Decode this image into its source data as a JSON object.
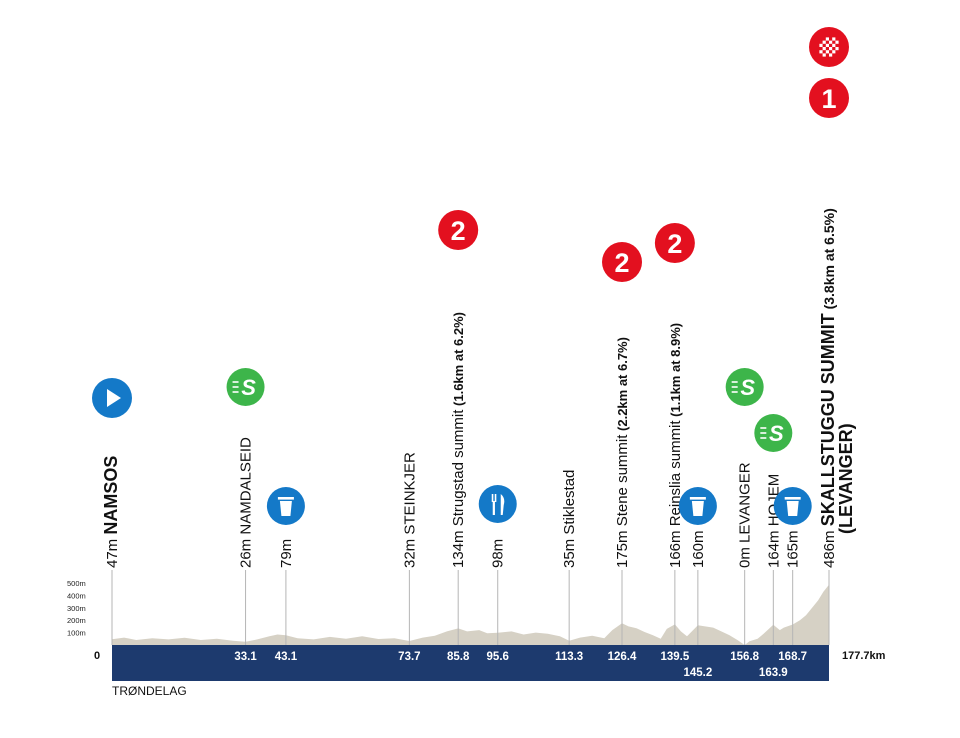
{
  "chart_data": {
    "type": "area",
    "region": "TRØNDELAG",
    "total_label": "177.7km",
    "start_label": "0",
    "x_range": [
      0,
      177.7
    ],
    "y_range": [
      0,
      500
    ],
    "y_tick_labels": [
      "500m",
      "400m",
      "300m",
      "200m",
      "100m"
    ],
    "y_tick_values": [
      500,
      400,
      300,
      200,
      100
    ],
    "km_marks": [
      {
        "km": 33.1,
        "label": "33.1",
        "row": 1
      },
      {
        "km": 43.1,
        "label": "43.1",
        "row": 1
      },
      {
        "km": 73.7,
        "label": "73.7",
        "row": 1
      },
      {
        "km": 85.8,
        "label": "85.8",
        "row": 1
      },
      {
        "km": 95.6,
        "label": "95.6",
        "row": 1
      },
      {
        "km": 113.3,
        "label": "113.3",
        "row": 1
      },
      {
        "km": 126.4,
        "label": "126.4",
        "row": 1
      },
      {
        "km": 139.5,
        "label": "139.5",
        "row": 1
      },
      {
        "km": 145.2,
        "label": "145.2",
        "row": 2
      },
      {
        "km": 156.8,
        "label": "156.8",
        "row": 1
      },
      {
        "km": 163.9,
        "label": "163.9",
        "row": 2
      },
      {
        "km": 168.7,
        "label": "168.7",
        "row": 1
      }
    ],
    "waypoints": [
      {
        "km": 0,
        "elev": "47m",
        "name": "NAMSOS",
        "bold": true
      },
      {
        "km": 33.1,
        "elev": "26m",
        "name": "NAMDALSEID",
        "bold": false
      },
      {
        "km": 43.1,
        "elev": "79m",
        "name": "",
        "bold": false
      },
      {
        "km": 73.7,
        "elev": "32m",
        "name": "STEINKJER",
        "bold": false
      },
      {
        "km": 85.8,
        "elev": "134m",
        "name": "Strugstad summit",
        "detail": "(1.6km at 6.2%)",
        "bold": false
      },
      {
        "km": 95.6,
        "elev": "98m",
        "name": "",
        "bold": false
      },
      {
        "km": 113.3,
        "elev": "35m",
        "name": "Stiklestad",
        "bold": false
      },
      {
        "km": 126.4,
        "elev": "175m",
        "name": "Stene summit",
        "detail": "(2.2km at 6.7%)",
        "bold": false
      },
      {
        "km": 139.5,
        "elev": "166m",
        "name": "Reinslia summit",
        "detail": "(1.1km at 8.9%)",
        "bold": false
      },
      {
        "km": 145.2,
        "elev": "160m",
        "name": "",
        "bold": false
      },
      {
        "km": 156.8,
        "elev": "0m",
        "name": "LEVANGER",
        "bold": false
      },
      {
        "km": 163.9,
        "elev": "164m",
        "name": "HOJEM",
        "bold": false
      },
      {
        "km": 168.7,
        "elev": "165m",
        "name": "",
        "bold": false
      },
      {
        "km": 177.7,
        "elev": "486m",
        "name": "SKALLSTUGGU SUMMIT",
        "detail": "(3.8km at 6.5%)",
        "name2": "(LEVANGER)",
        "bold": true
      }
    ],
    "markers": [
      {
        "km": 0,
        "type": "start",
        "label": ""
      },
      {
        "km": 33.1,
        "type": "sprint",
        "label": "S"
      },
      {
        "km": 43.1,
        "type": "feed-zone",
        "label": ""
      },
      {
        "km": 85.8,
        "type": "kom",
        "label": "2"
      },
      {
        "km": 95.6,
        "type": "food",
        "label": ""
      },
      {
        "km": 126.4,
        "type": "kom",
        "label": "2"
      },
      {
        "km": 139.5,
        "type": "kom",
        "label": "2"
      },
      {
        "km": 145.2,
        "type": "feed-zone",
        "label": ""
      },
      {
        "km": 156.8,
        "type": "sprint",
        "label": "S"
      },
      {
        "km": 163.9,
        "type": "sprint",
        "label": "S"
      },
      {
        "km": 168.7,
        "type": "feed-zone",
        "label": ""
      },
      {
        "km": 177.7,
        "type": "kom",
        "label": "1"
      },
      {
        "km": 177.7,
        "type": "finish",
        "label": ""
      }
    ],
    "profile": [
      [
        0,
        47
      ],
      [
        3,
        60
      ],
      [
        6,
        40
      ],
      [
        10,
        55
      ],
      [
        14,
        45
      ],
      [
        18,
        58
      ],
      [
        22,
        40
      ],
      [
        26,
        50
      ],
      [
        30,
        35
      ],
      [
        33.1,
        26
      ],
      [
        36,
        45
      ],
      [
        39,
        70
      ],
      [
        41,
        85
      ],
      [
        43.1,
        79
      ],
      [
        46,
        55
      ],
      [
        50,
        45
      ],
      [
        54,
        65
      ],
      [
        58,
        50
      ],
      [
        62,
        70
      ],
      [
        66,
        48
      ],
      [
        70,
        55
      ],
      [
        73.7,
        32
      ],
      [
        77,
        60
      ],
      [
        80,
        75
      ],
      [
        83,
        110
      ],
      [
        85.8,
        134
      ],
      [
        88,
        110
      ],
      [
        91,
        120
      ],
      [
        93,
        95
      ],
      [
        95.6,
        98
      ],
      [
        99,
        110
      ],
      [
        102,
        85
      ],
      [
        105,
        100
      ],
      [
        108,
        90
      ],
      [
        111,
        70
      ],
      [
        113.3,
        35
      ],
      [
        116,
        60
      ],
      [
        119,
        75
      ],
      [
        122,
        55
      ],
      [
        124,
        120
      ],
      [
        126.4,
        175
      ],
      [
        128,
        150
      ],
      [
        130,
        135
      ],
      [
        132,
        105
      ],
      [
        134,
        80
      ],
      [
        136,
        50
      ],
      [
        137.5,
        130
      ],
      [
        139.5,
        166
      ],
      [
        141,
        110
      ],
      [
        142.5,
        70
      ],
      [
        145.2,
        160
      ],
      [
        147,
        150
      ],
      [
        149,
        140
      ],
      [
        151,
        110
      ],
      [
        153,
        80
      ],
      [
        155,
        40
      ],
      [
        156.8,
        0
      ],
      [
        158,
        30
      ],
      [
        160,
        50
      ],
      [
        161.5,
        90
      ],
      [
        163.9,
        164
      ],
      [
        165.5,
        120
      ],
      [
        166.5,
        140
      ],
      [
        168.7,
        165
      ],
      [
        170.5,
        200
      ],
      [
        172,
        240
      ],
      [
        173.5,
        300
      ],
      [
        175,
        360
      ],
      [
        176.3,
        430
      ],
      [
        177.7,
        486
      ]
    ],
    "colors": {
      "profile_fill": "#d6d1c5",
      "base_band": "#1d3a6e",
      "kom": "#e3101f",
      "sprint": "#3db54a",
      "feed": "#1479c8",
      "start": "#1479c8"
    }
  }
}
